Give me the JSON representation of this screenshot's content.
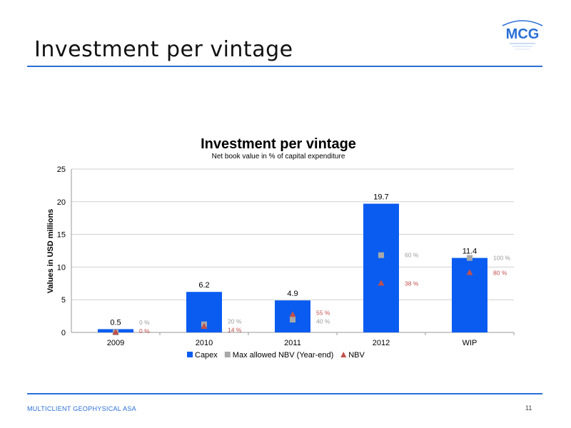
{
  "slide": {
    "title": "Investment per vintage",
    "logo_text": "MCG",
    "footer_company": "MULTICLIENT GEOPHYSICAL ASA",
    "page_number": "11"
  },
  "colors": {
    "capex": "#0a5cf0",
    "max_nbv": "#a8a8a8",
    "nbv": "#c0504d",
    "rule": "#2a6fd6",
    "logo": "#2a6fd6"
  },
  "chart_data": {
    "type": "bar",
    "title": "Investment per vintage",
    "subtitle": "Net book value in % of capital expenditure",
    "ylabel": "Values in USD millions",
    "xlabel": "",
    "ylim": [
      0,
      25
    ],
    "yticks": [
      "0",
      "5",
      "10",
      "15",
      "20",
      "25"
    ],
    "grid": true,
    "legend_position": "bottom",
    "categories": [
      "2009",
      "2010",
      "2011",
      "2012",
      "WIP"
    ],
    "series": [
      {
        "name": "Capex",
        "kind": "bar",
        "values": [
          0.5,
          6.2,
          4.9,
          19.7,
          11.4
        ],
        "labels": [
          "0.5",
          "6.2",
          "4.9",
          "19.7",
          "11.4"
        ]
      },
      {
        "name": "Max allowed NBV (Year-end)",
        "kind": "square-marker",
        "values": [
          0.0,
          1.24,
          1.96,
          11.82,
          11.4
        ],
        "labels": [
          "0 %",
          "20 %",
          "40 %",
          "60 %",
          "100 %"
        ]
      },
      {
        "name": "NBV",
        "kind": "triangle-marker",
        "values": [
          0.0,
          0.87,
          2.7,
          7.49,
          9.12
        ],
        "labels": [
          "0 %",
          "14 %",
          "55 %",
          "38 %",
          "80 %"
        ]
      }
    ]
  }
}
